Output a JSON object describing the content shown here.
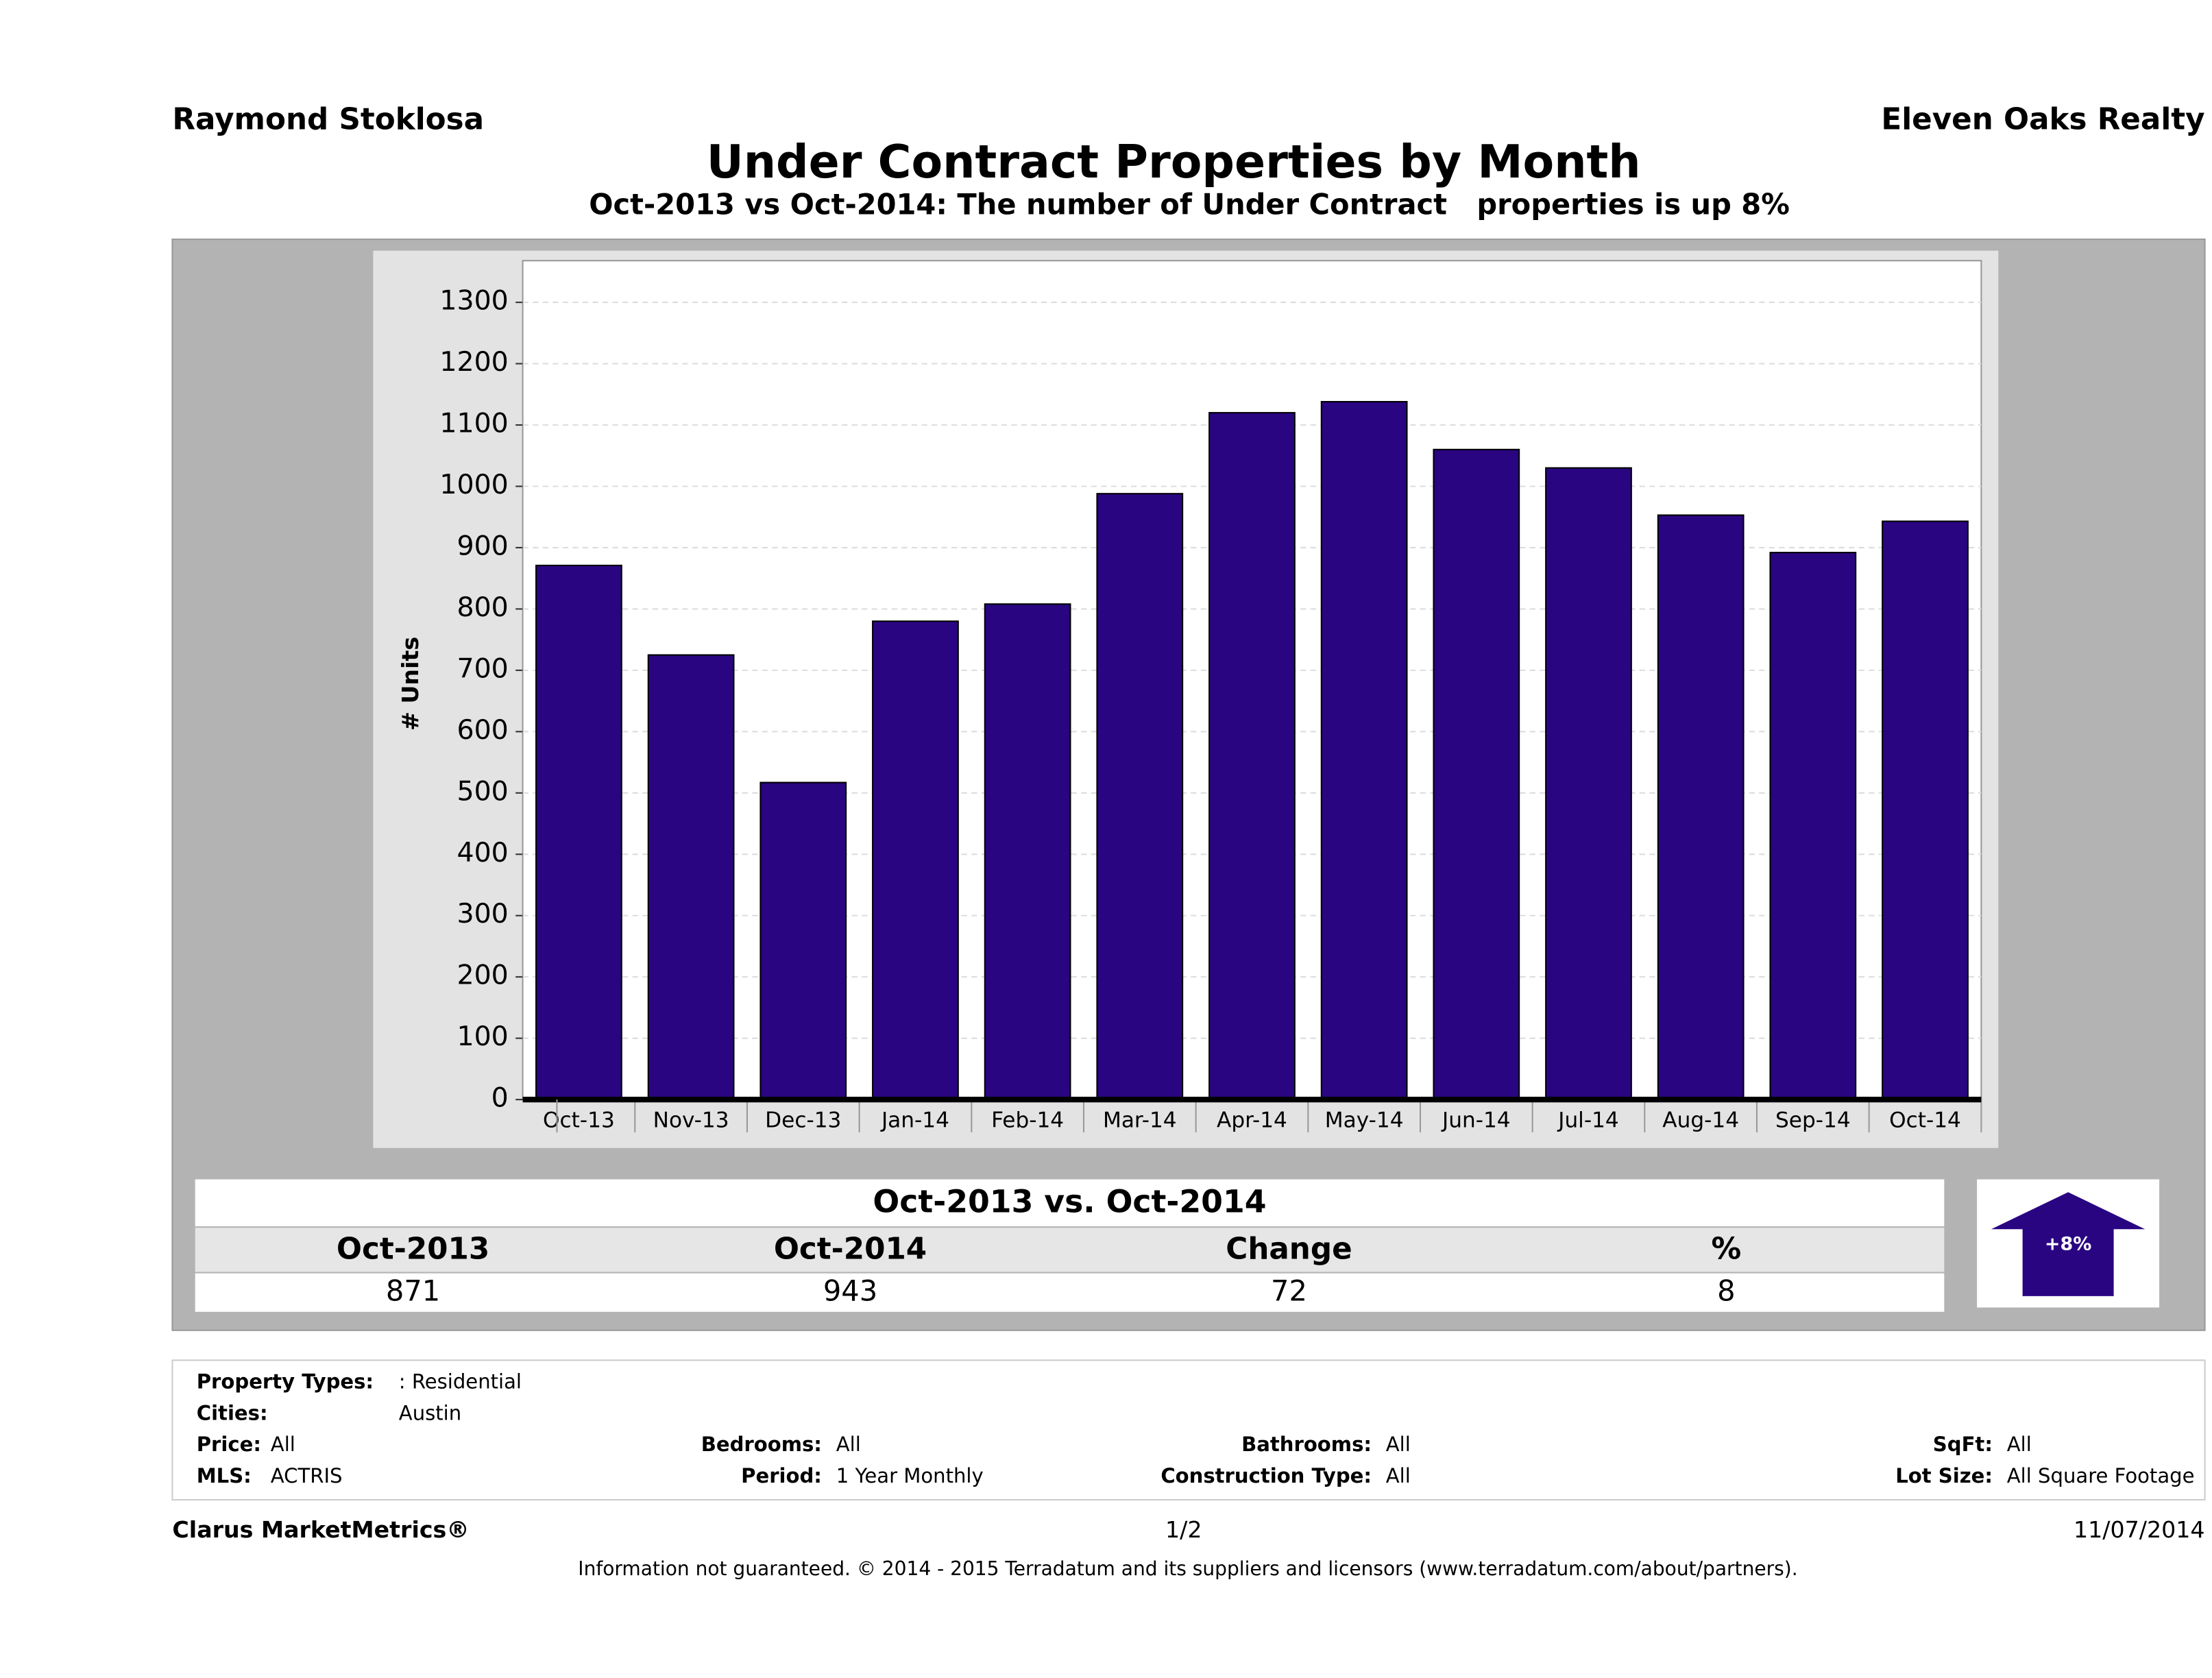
{
  "header": {
    "left": "Raymond Stoklosa",
    "right": "Eleven Oaks Realty"
  },
  "chart_data": {
    "type": "bar",
    "title": "Under Contract Properties by Month",
    "subtitle": "Oct-2013 vs Oct-2014: The number of Under Contract   properties is up 8%",
    "y_label": "# Units",
    "categories": [
      "Oct-13",
      "Nov-13",
      "Dec-13",
      "Jan-14",
      "Feb-14",
      "Mar-14",
      "Apr-14",
      "May-14",
      "Jun-14",
      "Jul-14",
      "Aug-14",
      "Sep-14",
      "Oct-14"
    ],
    "values": [
      871,
      725,
      517,
      780,
      808,
      988,
      1120,
      1138,
      1060,
      1030,
      953,
      892,
      943
    ],
    "color": "#2a0582",
    "ylim": [
      0,
      1368
    ],
    "yticks": [
      0,
      100,
      200,
      300,
      400,
      500,
      600,
      700,
      800,
      900,
      1000,
      1100,
      1200,
      1300
    ],
    "grid": true
  },
  "summary": {
    "title": "Oct-2013 vs. Oct-2014",
    "headers": [
      "Oct-2013",
      "Oct-2014",
      "Change",
      "%"
    ],
    "values": [
      871,
      943,
      72,
      8
    ],
    "badge": "+8%"
  },
  "filters": [
    {
      "label": "Property Types:",
      "value": ": Residential"
    },
    {
      "label": "Cities:",
      "value": "Austin"
    },
    {
      "label": "Price:",
      "value": "All"
    },
    {
      "label": "Bedrooms:",
      "value": "All"
    },
    {
      "label": "Bathrooms:",
      "value": "All"
    },
    {
      "label": "SqFt:",
      "value": "All"
    },
    {
      "label": "MLS:",
      "value": "ACTRIS"
    },
    {
      "label": "Period:",
      "value": "1 Year Monthly"
    },
    {
      "label": "Construction Type:",
      "value": "All"
    },
    {
      "label": "Lot Size:",
      "value": "All Square Footage"
    }
  ],
  "footer": {
    "left": "Clarus MarketMetrics®",
    "center": "1/2",
    "right": "11/07/2014",
    "note": "Information not guaranteed. © 2014 - 2015 Terradatum and its suppliers and licensors (www.terradatum.com/about/partners)."
  }
}
